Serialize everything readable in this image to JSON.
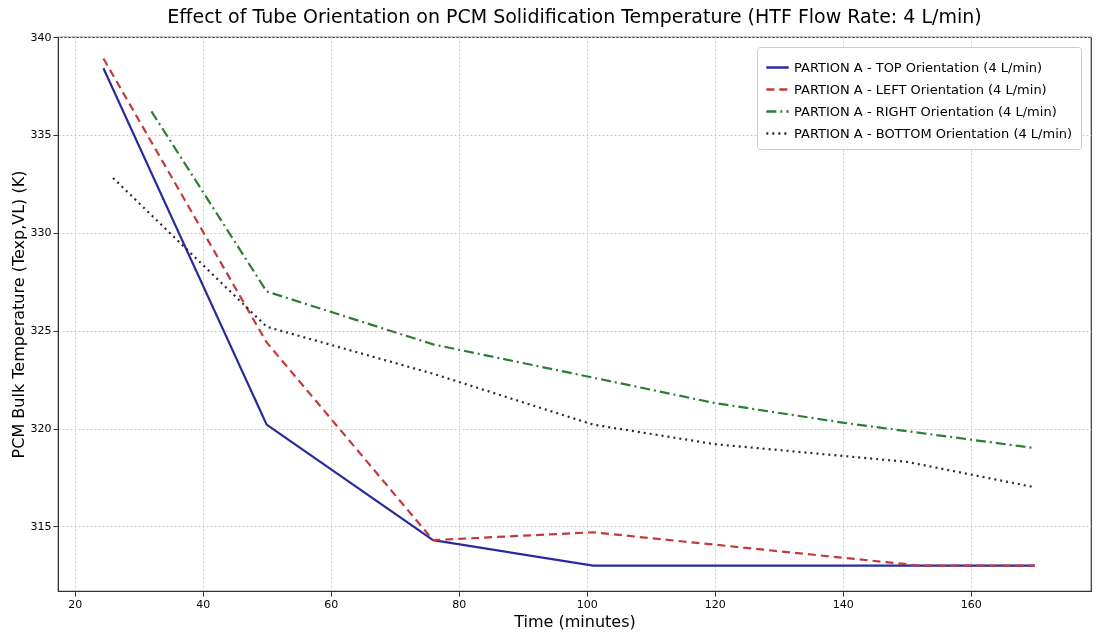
{
  "chart_data": {
    "type": "line",
    "title": "Effect of Tube Orientation on PCM Solidification Temperature (HTF Flow Rate: 4 L/min)",
    "xlabel": "Time (minutes)",
    "ylabel": "PCM Bulk Temperature (Texp,VL) (K)",
    "xlim": [
      17.4,
      178.8
    ],
    "ylim": [
      311.7,
      340
    ],
    "xticks": [
      20,
      40,
      60,
      80,
      100,
      120,
      140,
      160
    ],
    "yticks": [
      315,
      320,
      325,
      330,
      335,
      340
    ],
    "grid": true,
    "legend": "top right",
    "marker": "none",
    "series": [
      {
        "name": "PARTION A - TOP Orientation (4 L/min)",
        "color": "#2a2a9c",
        "line_style": "solid",
        "x": [
          24.5,
          50,
          76,
          101,
          170
        ],
        "values": [
          338.4,
          320.2,
          314.3,
          313.0,
          313.0
        ]
      },
      {
        "name": "PARTION A - LEFT Orientation (4 L/min)",
        "color": "#c43a3a",
        "line_style": "dashed",
        "x": [
          24.5,
          50,
          76,
          101,
          152,
          170
        ],
        "values": [
          338.9,
          324.4,
          314.3,
          314.7,
          313.0,
          313.0
        ]
      },
      {
        "name": "PARTION A - RIGHT Orientation (4 L/min)",
        "color": "#2e7d32",
        "line_style": "dashdot",
        "x": [
          32,
          50,
          76,
          101,
          120,
          140,
          170
        ],
        "values": [
          336.2,
          327.0,
          324.3,
          322.6,
          321.3,
          320.3,
          319.0
        ]
      },
      {
        "name": "PARTION A - BOTTOM Orientation (4 L/min)",
        "color": "#3a1f3a",
        "line_style": "dotted",
        "x": [
          26,
          50,
          76,
          101,
          120,
          140,
          150,
          170
        ],
        "values": [
          332.8,
          325.2,
          322.8,
          320.2,
          319.2,
          318.6,
          318.3,
          317.0
        ]
      }
    ]
  }
}
